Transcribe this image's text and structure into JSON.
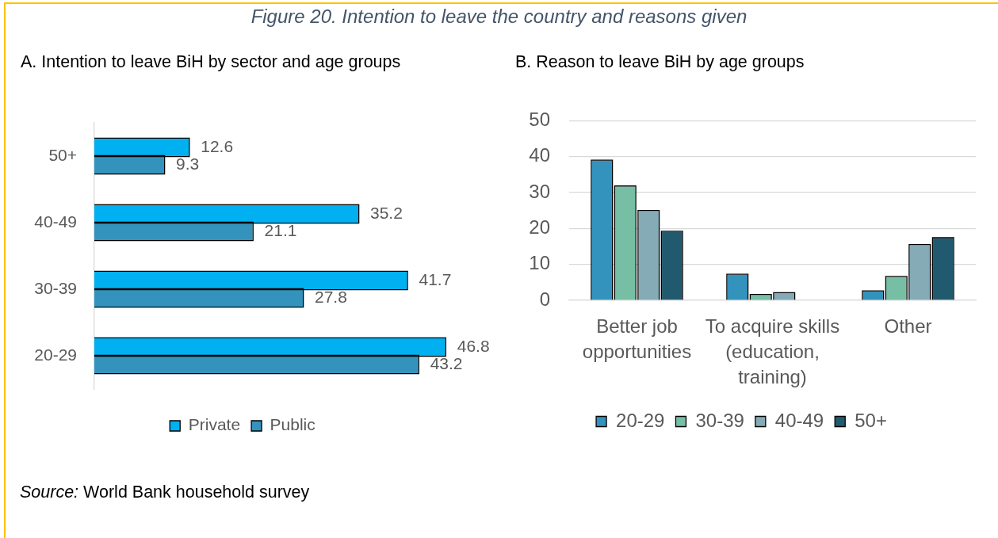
{
  "chart_data": [
    {
      "type": "other",
      "title": "Figure 20. Intention to leave the country and reasons given"
    },
    {
      "type": "bar",
      "title": "A. Intention to leave BiH by sector and age groups",
      "orientation": "horizontal",
      "categories": [
        "50+",
        "40-49",
        "30-39",
        "20-29"
      ],
      "series": [
        {
          "name": "Private",
          "color": "#00b0f0",
          "values": [
            12.6,
            35.2,
            41.7,
            46.8
          ]
        },
        {
          "name": "Public",
          "color": "#3393bd",
          "values": [
            9.3,
            21.1,
            27.8,
            43.2
          ]
        }
      ],
      "data_labels": true,
      "legend": "bottom",
      "tick_labels": "y"
    },
    {
      "type": "bar",
      "title": "B. Reason to leave BiH by age groups",
      "categories": [
        "Better job opportunities",
        "To acquire skills (education, training)",
        "Other"
      ],
      "series": [
        {
          "name": "20-29",
          "color": "#3393bd",
          "values": [
            38.9,
            7.1,
            2.5
          ]
        },
        {
          "name": "30-39",
          "color": "#76bfa5",
          "values": [
            31.7,
            1.5,
            6.5
          ]
        },
        {
          "name": "40-49",
          "color": "#85abb7",
          "values": [
            24.9,
            2.0,
            15.4
          ]
        },
        {
          "name": "50+",
          "color": "#215a6e",
          "values": [
            19.1,
            null,
            17.3
          ]
        }
      ],
      "ylim": [
        0,
        50
      ],
      "yticks": [
        0,
        10,
        20,
        30,
        40,
        50
      ],
      "grid": "y",
      "legend": "bottom"
    },
    {
      "type": "other",
      "annotations": [
        "Source: World Bank household survey"
      ]
    }
  ]
}
